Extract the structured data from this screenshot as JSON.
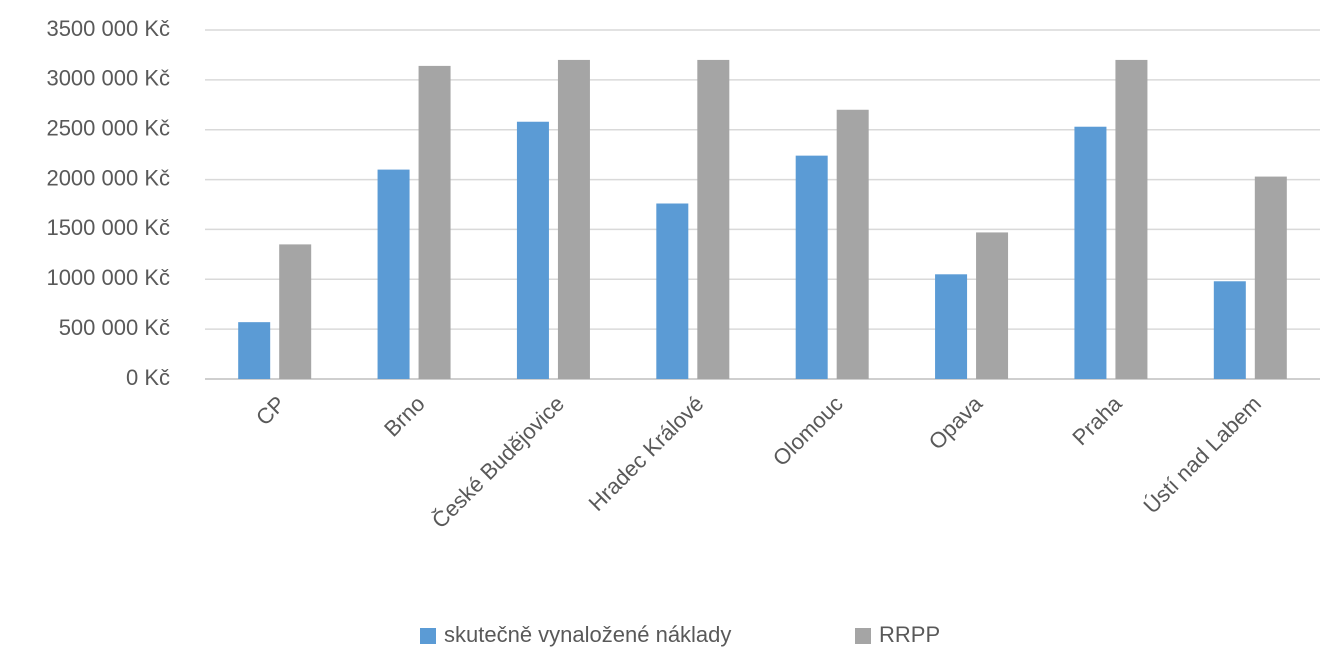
{
  "chart_data": {
    "type": "bar",
    "categories": [
      "CP",
      "Brno",
      "České Budějovice",
      "Hradec Králové",
      "Olomouc",
      "Opava",
      "Praha",
      "Ústí nad Labem"
    ],
    "series": [
      {
        "name": "skutečně vynaložené náklady",
        "color": "#5b9bd5",
        "values": [
          570000,
          2100000,
          2580000,
          1760000,
          2240000,
          1050000,
          2530000,
          980000
        ]
      },
      {
        "name": "RRPP",
        "color": "#a5a5a5",
        "values": [
          1350000,
          3140000,
          3200000,
          3200000,
          2700000,
          1470000,
          3200000,
          2030000
        ]
      }
    ],
    "ylim": [
      0,
      3500000
    ],
    "yticks": [
      {
        "value": 0,
        "label": "0 Kč"
      },
      {
        "value": 500000,
        "label": "500 000 Kč"
      },
      {
        "value": 1000000,
        "label": "1000 000 Kč"
      },
      {
        "value": 1500000,
        "label": "1500 000 Kč"
      },
      {
        "value": 2000000,
        "label": "2000 000 Kč"
      },
      {
        "value": 2500000,
        "label": "2500 000 Kč"
      },
      {
        "value": 3000000,
        "label": "3000 000 Kč"
      },
      {
        "value": 3500000,
        "label": "3500 000 Kč"
      }
    ],
    "grid": true,
    "legend": "bottom"
  }
}
